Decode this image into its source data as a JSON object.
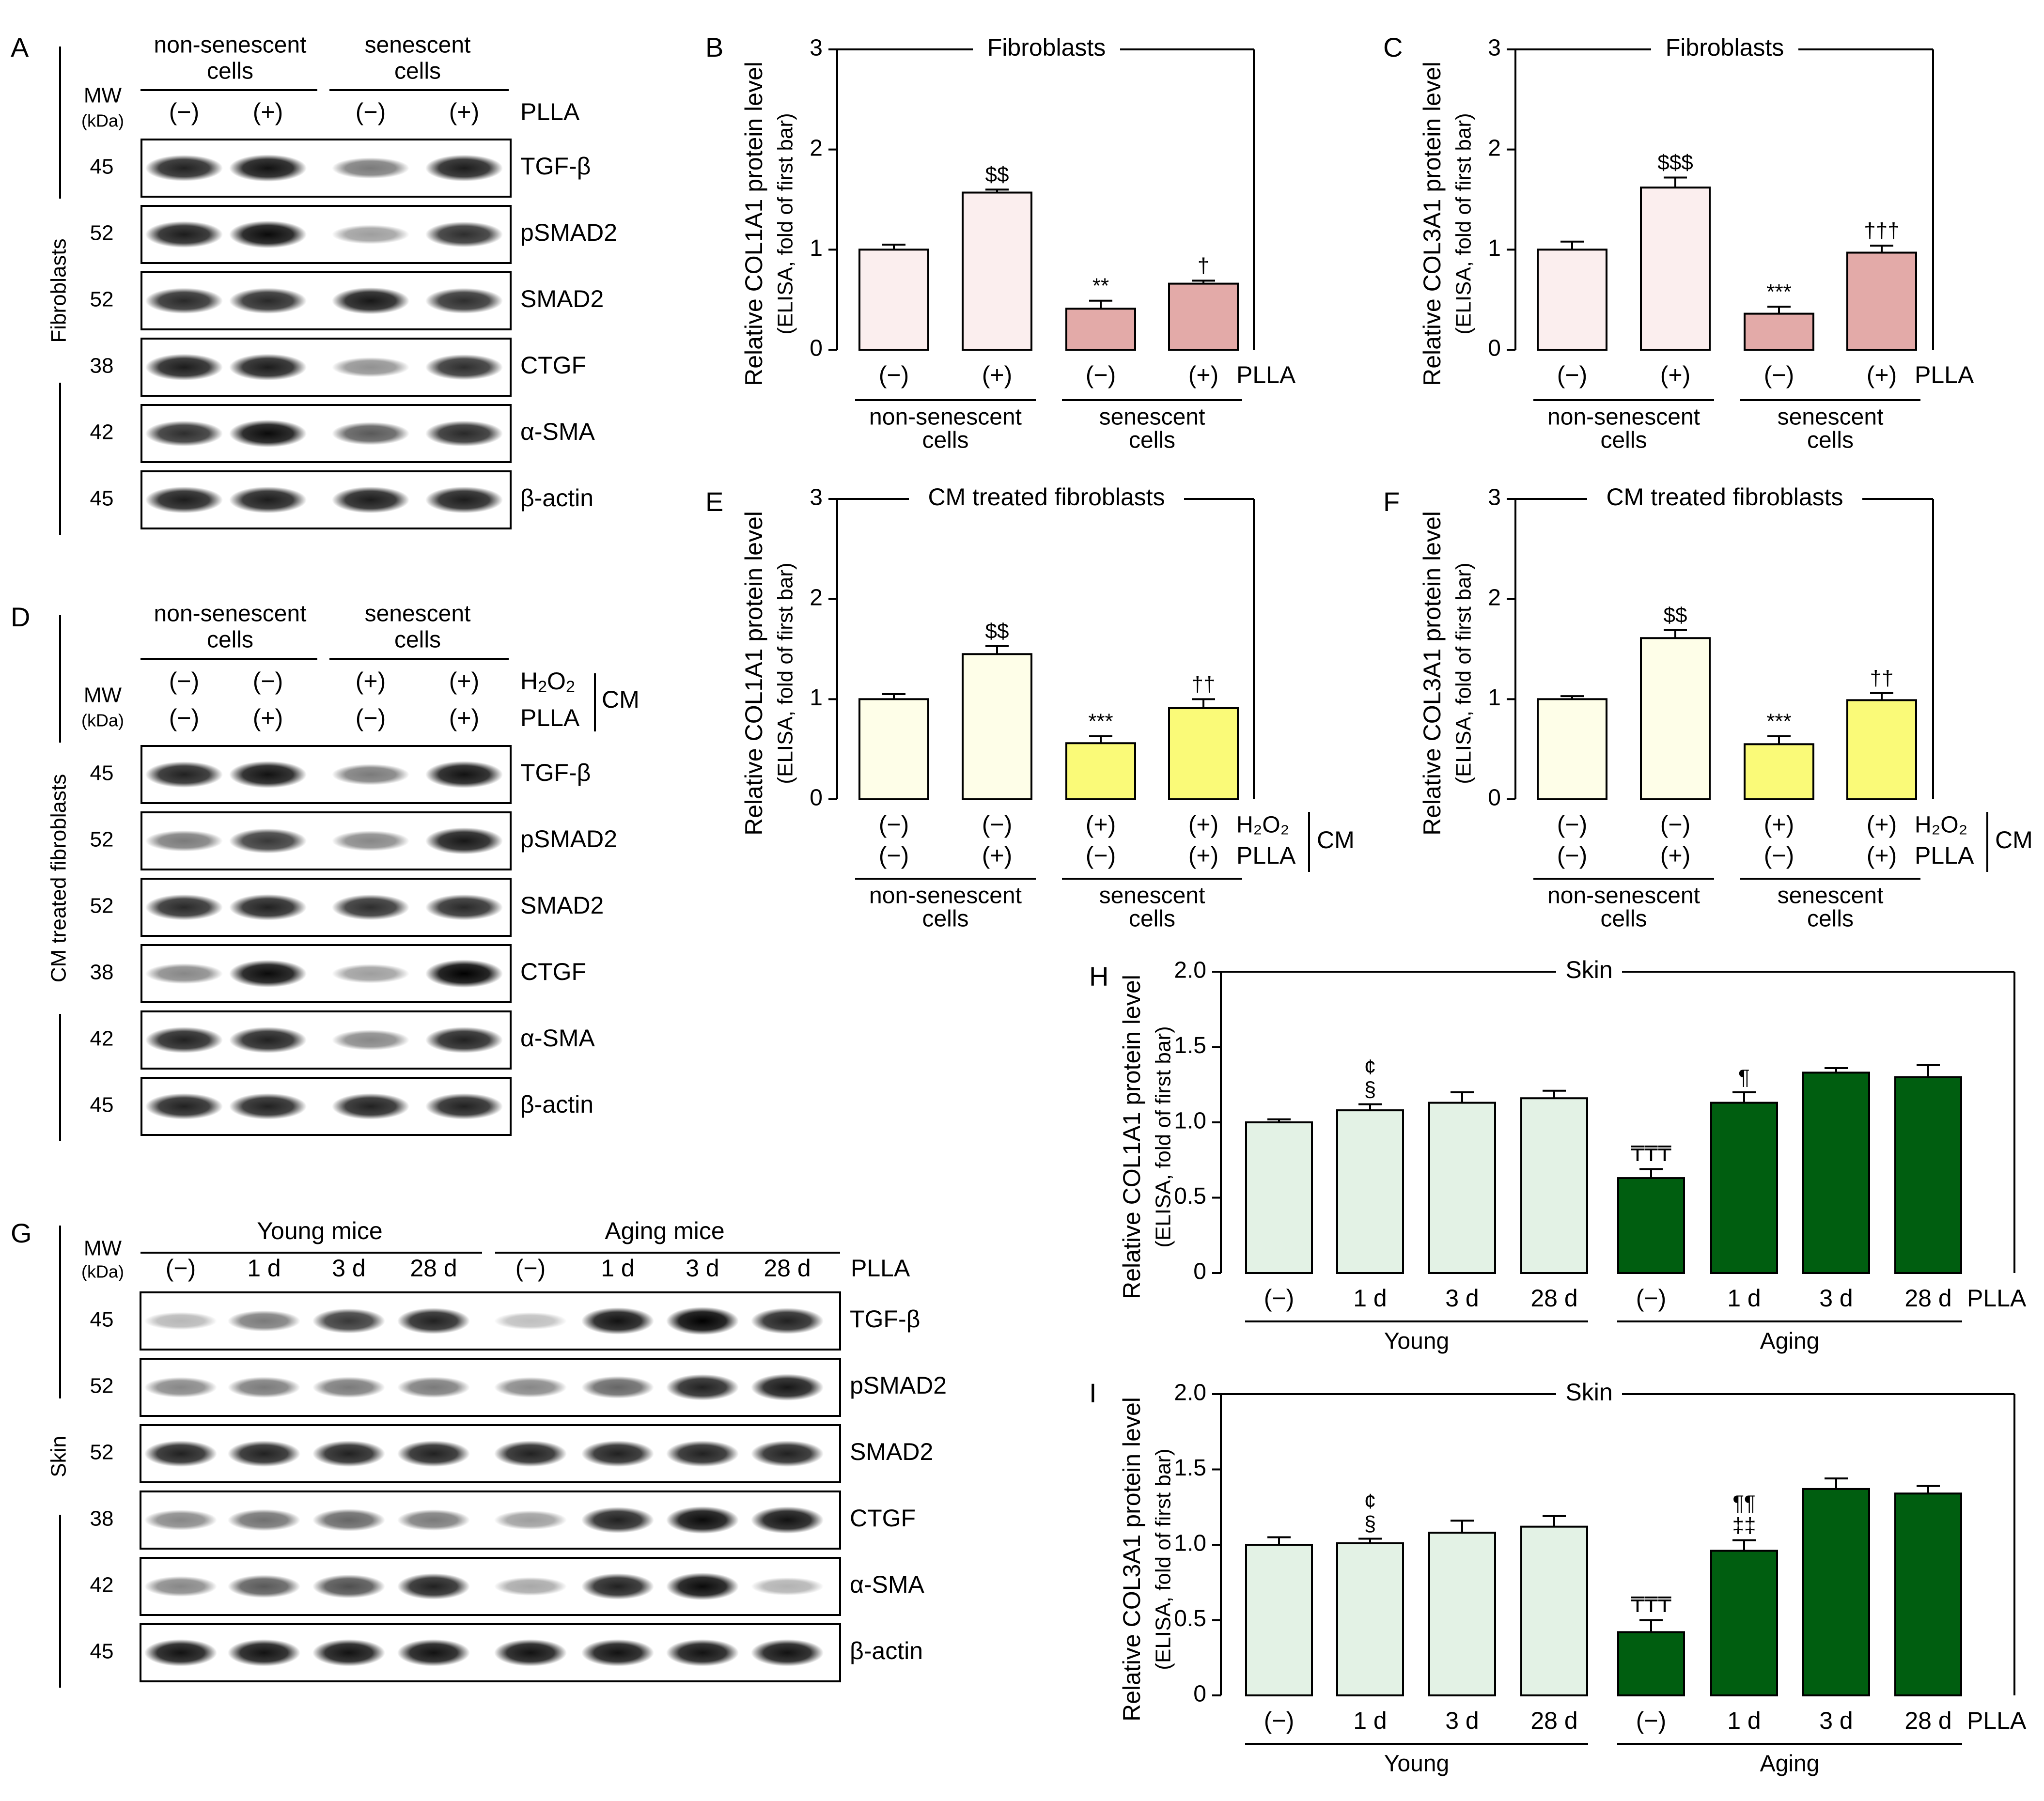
{
  "colors": {
    "fibro_light": "#fbeeee",
    "fibro_dark": "#e3aaa8",
    "cm_light": "#fefee8",
    "cm_dark": "#fafa78",
    "skin_light": "#e3f2e5",
    "skin_dark": "#005e10"
  },
  "blot_labels": {
    "mw": "MW",
    "kda": "(kDa)",
    "non_senescent": [
      "non-senescent",
      "cells"
    ],
    "senescent": [
      "senescent",
      "cells"
    ],
    "plla": "PLLA",
    "h2o2_main": "H",
    "h2o2_sub": "2",
    "h2o2_tail": "O",
    "h2o2_sub2": "2",
    "cm": "CM",
    "young_mice": "Young mice",
    "aging_mice": "Aging mice"
  },
  "panels": {
    "A": {
      "letter": "A",
      "side_label": "Fibroblasts",
      "treatments": [
        "(−)",
        "(+)",
        "(−)",
        "(+)"
      ],
      "rows": [
        {
          "mw": "45",
          "protein": "TGF-β",
          "intensity": [
            0.85,
            0.92,
            0.45,
            0.88
          ]
        },
        {
          "mw": "52",
          "protein": "pSMAD2",
          "intensity": [
            0.88,
            0.95,
            0.3,
            0.8
          ]
        },
        {
          "mw": "52",
          "protein": "SMAD2",
          "intensity": [
            0.82,
            0.82,
            0.9,
            0.8
          ]
        },
        {
          "mw": "38",
          "protein": "CTGF",
          "intensity": [
            0.88,
            0.88,
            0.35,
            0.8
          ]
        },
        {
          "mw": "42",
          "protein": "α-SMA",
          "intensity": [
            0.8,
            0.95,
            0.6,
            0.82
          ]
        },
        {
          "mw": "45",
          "protein": "β-actin",
          "intensity": [
            0.88,
            0.88,
            0.88,
            0.88
          ]
        }
      ]
    },
    "D": {
      "letter": "D",
      "side_label": "CM treated fibroblasts",
      "h2o2": [
        "(−)",
        "(−)",
        "(+)",
        "(+)"
      ],
      "plla": [
        "(−)",
        "(+)",
        "(−)",
        "(+)"
      ],
      "rows": [
        {
          "mw": "45",
          "protein": "TGF-β",
          "intensity": [
            0.85,
            0.92,
            0.45,
            0.92
          ]
        },
        {
          "mw": "52",
          "protein": "pSMAD2",
          "intensity": [
            0.45,
            0.75,
            0.4,
            0.9
          ]
        },
        {
          "mw": "52",
          "protein": "SMAD2",
          "intensity": [
            0.82,
            0.85,
            0.8,
            0.82
          ]
        },
        {
          "mw": "38",
          "protein": "CTGF",
          "intensity": [
            0.4,
            0.95,
            0.3,
            1.0
          ]
        },
        {
          "mw": "42",
          "protein": "α-SMA",
          "intensity": [
            0.85,
            0.85,
            0.4,
            0.85
          ]
        },
        {
          "mw": "45",
          "protein": "β-actin",
          "intensity": [
            0.85,
            0.85,
            0.85,
            0.85
          ]
        }
      ]
    },
    "G": {
      "letter": "G",
      "side_label": "Skin",
      "treatments": [
        "(−)",
        "1 d",
        "3 d",
        "28 d",
        "(−)",
        "1 d",
        "3 d",
        "28 d"
      ],
      "rows": [
        {
          "mw": "45",
          "protein": "TGF-β",
          "intensity": [
            0.18,
            0.45,
            0.75,
            0.85,
            0.15,
            0.92,
            1.0,
            0.85
          ]
        },
        {
          "mw": "52",
          "protein": "pSMAD2",
          "intensity": [
            0.4,
            0.45,
            0.45,
            0.45,
            0.4,
            0.55,
            0.85,
            0.9
          ]
        },
        {
          "mw": "52",
          "protein": "SMAD2",
          "intensity": [
            0.85,
            0.85,
            0.85,
            0.85,
            0.85,
            0.85,
            0.85,
            0.85
          ]
        },
        {
          "mw": "38",
          "protein": "CTGF",
          "intensity": [
            0.4,
            0.5,
            0.55,
            0.45,
            0.3,
            0.85,
            0.95,
            0.92
          ]
        },
        {
          "mw": "42",
          "protein": "α-SMA",
          "intensity": [
            0.4,
            0.6,
            0.65,
            0.85,
            0.25,
            0.85,
            0.95,
            0.2
          ]
        },
        {
          "mw": "45",
          "protein": "β-actin",
          "intensity": [
            0.92,
            0.92,
            0.92,
            0.92,
            0.92,
            0.92,
            0.92,
            0.92
          ]
        }
      ]
    }
  },
  "chart_data": [
    {
      "id": "B",
      "type": "bar",
      "title": "Fibroblasts",
      "ylabel": [
        "Relative COL1A1 protein level",
        "(ELISA, fold of first bar)"
      ],
      "ylim": [
        0,
        3
      ],
      "yticks": [
        "0",
        "1",
        "2",
        "3"
      ],
      "categories": [
        "(−)",
        "(+)",
        "(−)",
        "(+)"
      ],
      "category_suffix": "PLLA",
      "values": [
        1.0,
        1.57,
        0.41,
        0.66
      ],
      "errors": [
        0.05,
        0.03,
        0.08,
        0.03
      ],
      "annotations": [
        [],
        [
          "$$"
        ],
        [
          "**"
        ],
        [
          "†"
        ]
      ],
      "groups": [
        {
          "label": [
            "non-senescent",
            "cells"
          ],
          "span": [
            0,
            1
          ]
        },
        {
          "label": [
            "senescent",
            "cells"
          ],
          "span": [
            2,
            3
          ]
        }
      ],
      "color_keys": [
        "fibro_light",
        "fibro_light",
        "fibro_dark",
        "fibro_dark"
      ]
    },
    {
      "id": "C",
      "type": "bar",
      "title": "Fibroblasts",
      "ylabel": [
        "Relative COL3A1 protein level",
        "(ELISA, fold of first bar)"
      ],
      "ylim": [
        0,
        3
      ],
      "yticks": [
        "0",
        "1",
        "2",
        "3"
      ],
      "categories": [
        "(−)",
        "(+)",
        "(−)",
        "(+)"
      ],
      "category_suffix": "PLLA",
      "values": [
        1.0,
        1.62,
        0.36,
        0.97
      ],
      "errors": [
        0.08,
        0.1,
        0.07,
        0.07
      ],
      "annotations": [
        [],
        [
          "$$$"
        ],
        [
          "***"
        ],
        [
          "†††"
        ]
      ],
      "groups": [
        {
          "label": [
            "non-senescent",
            "cells"
          ],
          "span": [
            0,
            1
          ]
        },
        {
          "label": [
            "senescent",
            "cells"
          ],
          "span": [
            2,
            3
          ]
        }
      ],
      "color_keys": [
        "fibro_light",
        "fibro_light",
        "fibro_dark",
        "fibro_dark"
      ]
    },
    {
      "id": "E",
      "type": "bar",
      "title": "CM treated fibroblasts",
      "ylabel": [
        "Relative COL1A1 protein level",
        "(ELISA, fold of first bar)"
      ],
      "ylim": [
        0,
        3
      ],
      "yticks": [
        "0",
        "1",
        "2",
        "3"
      ],
      "categories": [
        "(−)",
        "(+)",
        "(−)",
        "(+)"
      ],
      "categories_top": [
        "(−)",
        "(−)",
        "(+)",
        "(+)"
      ],
      "top_suffix": "H₂O₂",
      "category_suffix": "PLLA",
      "bracket_label": "CM",
      "values": [
        1.0,
        1.45,
        0.56,
        0.91
      ],
      "errors": [
        0.05,
        0.08,
        0.07,
        0.09
      ],
      "annotations": [
        [],
        [
          "$$"
        ],
        [
          "***"
        ],
        [
          "††"
        ]
      ],
      "groups": [
        {
          "label": [
            "non-senescent",
            "cells"
          ],
          "span": [
            0,
            1
          ]
        },
        {
          "label": [
            "senescent",
            "cells"
          ],
          "span": [
            2,
            3
          ]
        }
      ],
      "color_keys": [
        "cm_light",
        "cm_light",
        "cm_dark",
        "cm_dark"
      ]
    },
    {
      "id": "F",
      "type": "bar",
      "title": "CM treated fibroblasts",
      "ylabel": [
        "Relative COL3A1 protein level",
        "(ELISA, fold of first bar)"
      ],
      "ylim": [
        0,
        3
      ],
      "yticks": [
        "0",
        "1",
        "2",
        "3"
      ],
      "categories": [
        "(−)",
        "(+)",
        "(−)",
        "(+)"
      ],
      "categories_top": [
        "(−)",
        "(−)",
        "(+)",
        "(+)"
      ],
      "top_suffix": "H₂O₂",
      "category_suffix": "PLLA",
      "bracket_label": "CM",
      "values": [
        1.0,
        1.61,
        0.55,
        0.99
      ],
      "errors": [
        0.03,
        0.08,
        0.08,
        0.07
      ],
      "annotations": [
        [],
        [
          "$$"
        ],
        [
          "***"
        ],
        [
          "††"
        ]
      ],
      "groups": [
        {
          "label": [
            "non-senescent",
            "cells"
          ],
          "span": [
            0,
            1
          ]
        },
        {
          "label": [
            "senescent",
            "cells"
          ],
          "span": [
            2,
            3
          ]
        }
      ],
      "color_keys": [
        "cm_light",
        "cm_light",
        "cm_dark",
        "cm_dark"
      ]
    },
    {
      "id": "H",
      "type": "bar",
      "title": "Skin",
      "ylabel": [
        "Relative COL1A1 protein level",
        "(ELISA, fold of first bar)"
      ],
      "ylim": [
        0,
        2.0
      ],
      "yticks": [
        "0",
        "0.5",
        "1.0",
        "1.5",
        "2.0"
      ],
      "categories": [
        "(−)",
        "1 d",
        "3 d",
        "28 d",
        "(−)",
        "1 d",
        "3 d",
        "28 d"
      ],
      "category_suffix": "PLLA",
      "values": [
        1.0,
        1.08,
        1.13,
        1.16,
        0.63,
        1.13,
        1.33,
        1.3
      ],
      "errors": [
        0.02,
        0.04,
        0.07,
        0.05,
        0.06,
        0.07,
        0.03,
        0.08
      ],
      "annotations": [
        [],
        [
          "§",
          "¢"
        ],
        [],
        [],
        [
          "₸₸₸"
        ],
        [
          "¶"
        ],
        [],
        []
      ],
      "groups": [
        {
          "label": [
            "Young"
          ],
          "span": [
            0,
            3
          ]
        },
        {
          "label": [
            "Aging"
          ],
          "span": [
            4,
            7
          ]
        }
      ],
      "color_keys": [
        "skin_light",
        "skin_light",
        "skin_light",
        "skin_light",
        "skin_dark",
        "skin_dark",
        "skin_dark",
        "skin_dark"
      ]
    },
    {
      "id": "I",
      "type": "bar",
      "title": "Skin",
      "ylabel": [
        "Relative COL3A1 protein level",
        "(ELISA, fold of first bar)"
      ],
      "ylim": [
        0,
        2.0
      ],
      "yticks": [
        "0",
        "0.5",
        "1.0",
        "1.5",
        "2.0"
      ],
      "categories": [
        "(−)",
        "1 d",
        "3 d",
        "28 d",
        "(−)",
        "1 d",
        "3 d",
        "28 d"
      ],
      "category_suffix": "PLLA",
      "values": [
        1.0,
        1.01,
        1.08,
        1.12,
        0.42,
        0.96,
        1.37,
        1.34
      ],
      "errors": [
        0.05,
        0.03,
        0.08,
        0.07,
        0.08,
        0.07,
        0.07,
        0.05
      ],
      "annotations": [
        [],
        [
          "§",
          "¢"
        ],
        [],
        [],
        [
          "₸₸₸"
        ],
        [
          "‡‡",
          "¶¶"
        ],
        [],
        []
      ],
      "groups": [
        {
          "label": [
            "Young"
          ],
          "span": [
            0,
            3
          ]
        },
        {
          "label": [
            "Aging"
          ],
          "span": [
            4,
            7
          ]
        }
      ],
      "color_keys": [
        "skin_light",
        "skin_light",
        "skin_light",
        "skin_light",
        "skin_dark",
        "skin_dark",
        "skin_dark",
        "skin_dark"
      ]
    }
  ]
}
